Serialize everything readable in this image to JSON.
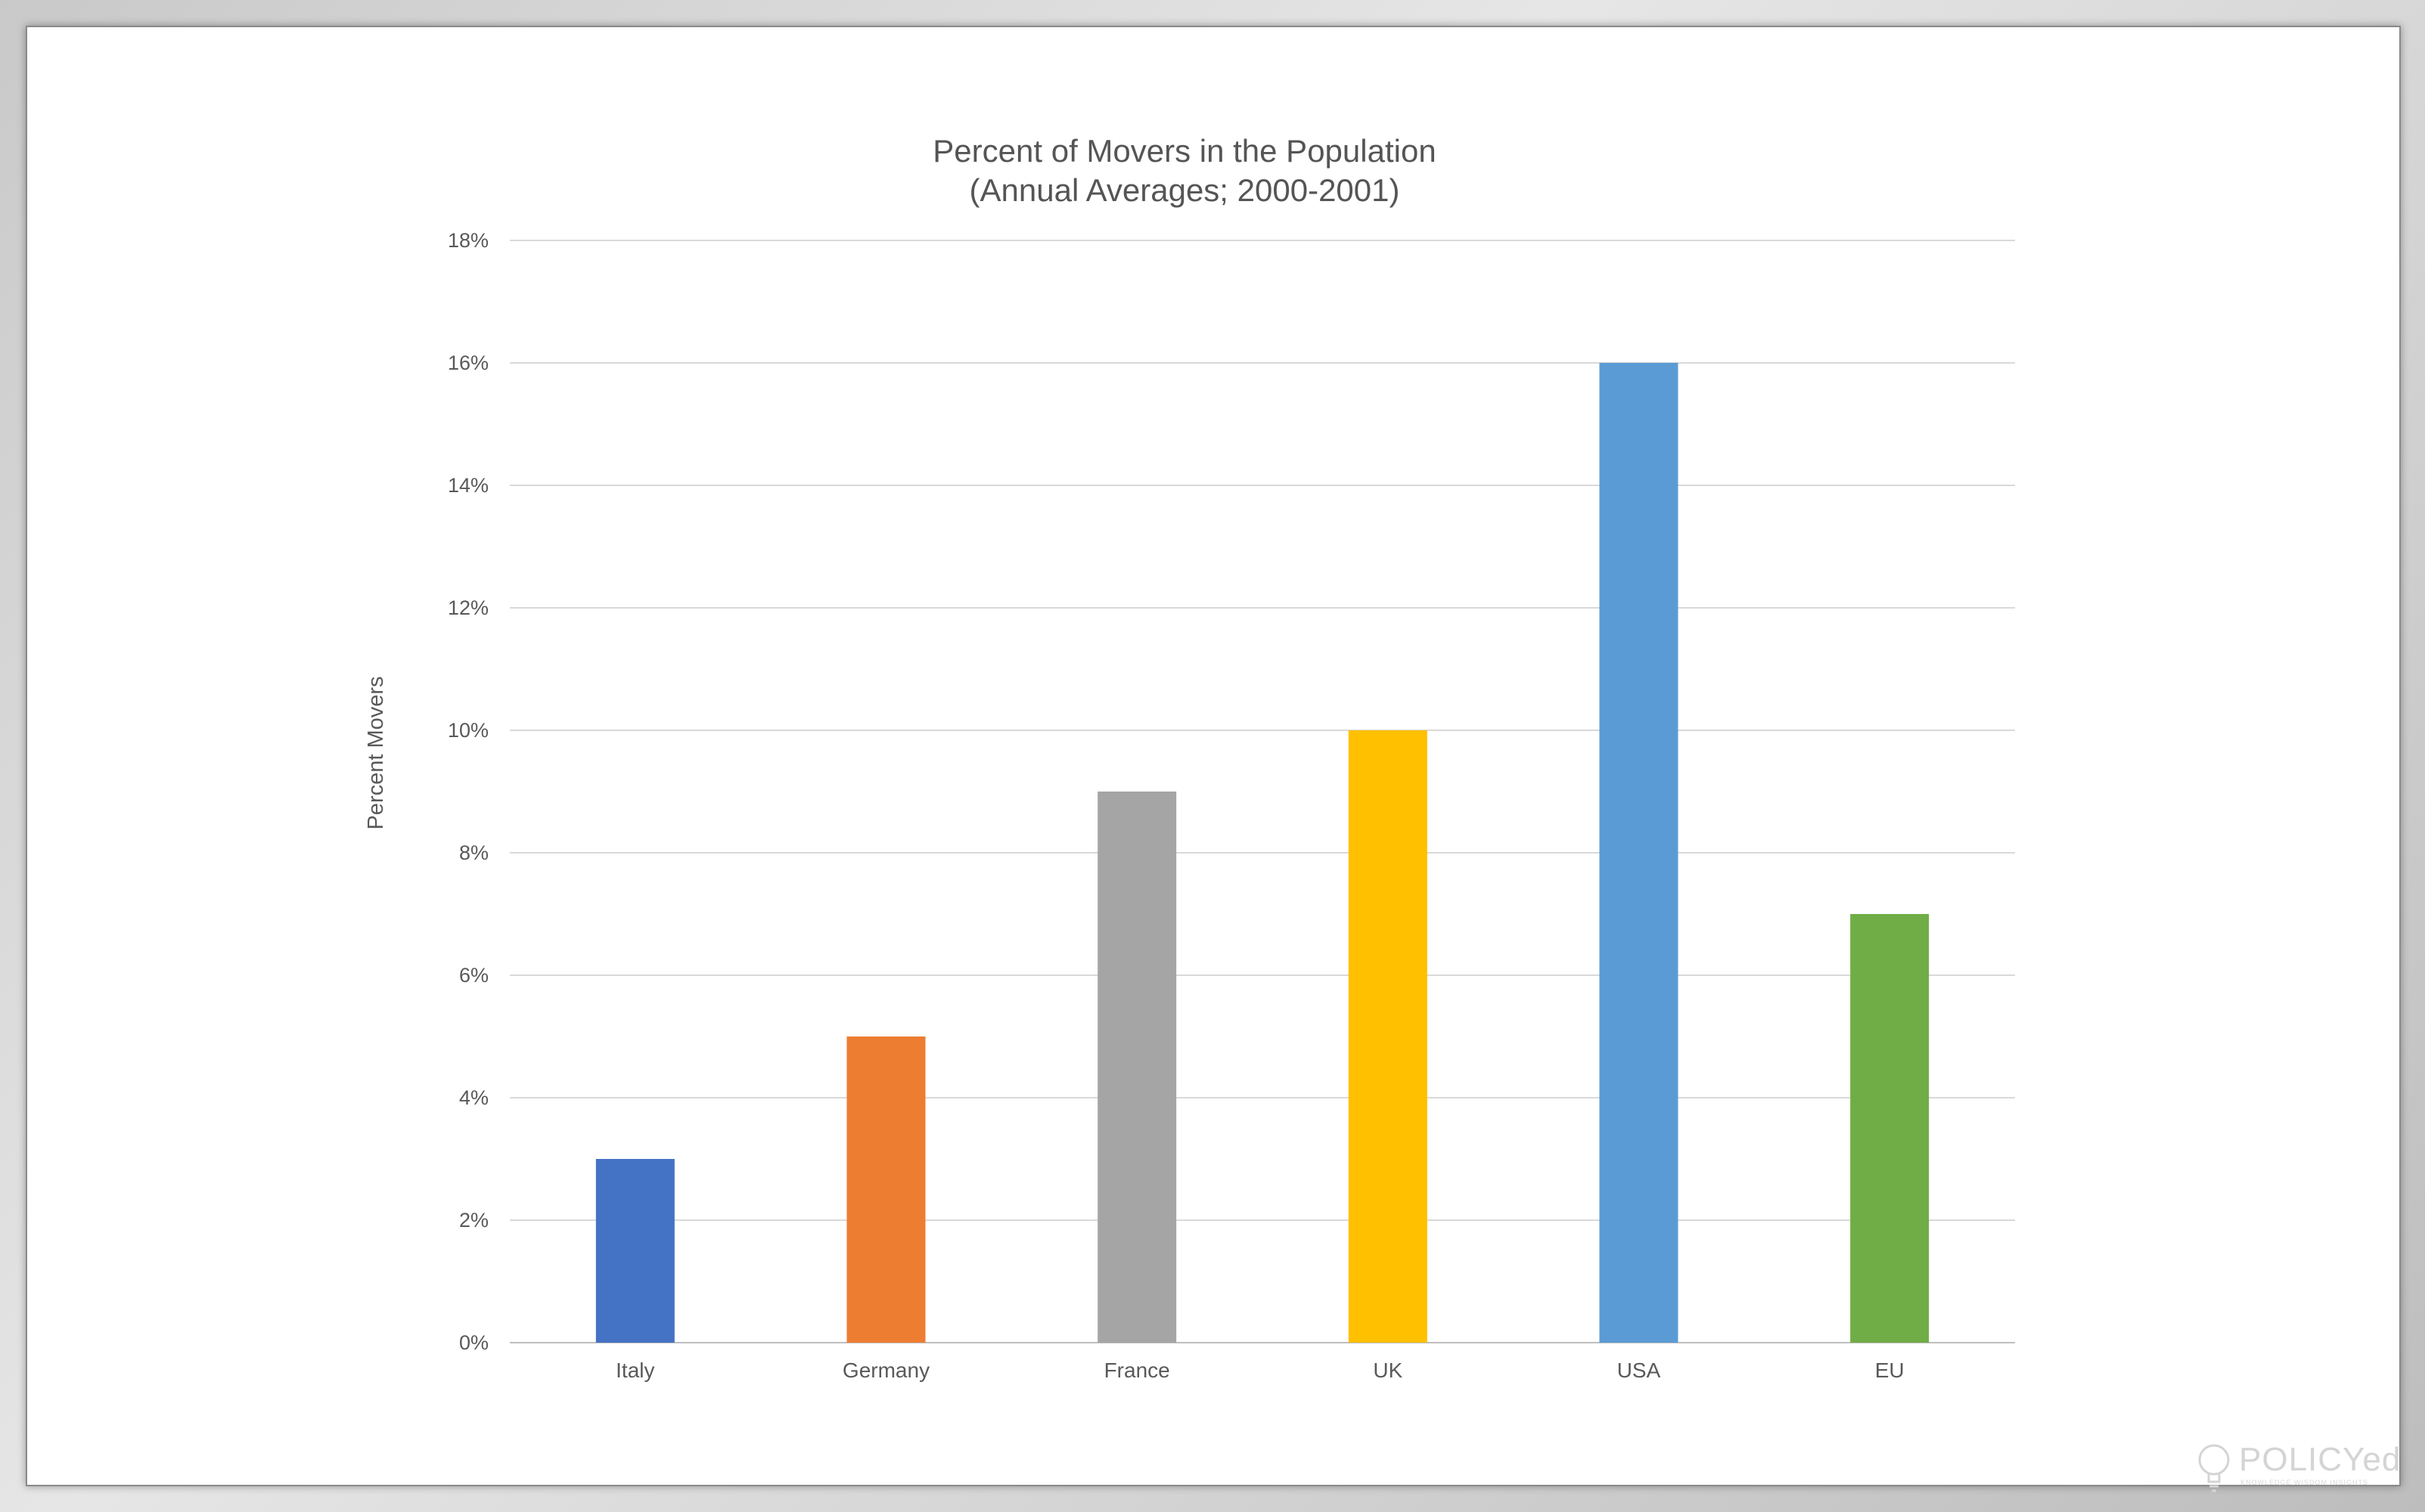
{
  "chart_data": {
    "type": "bar",
    "title": "Percent of Movers in the Population",
    "subtitle": "(Annual Averages; 2000-2001)",
    "ylabel": "Percent Movers",
    "xlabel": "",
    "categories": [
      "Italy",
      "Germany",
      "France",
      "UK",
      "USA",
      "EU"
    ],
    "values": [
      3,
      5,
      9,
      10,
      16,
      7
    ],
    "colors": [
      "#4472C4",
      "#ED7D31",
      "#A5A5A5",
      "#FFC000",
      "#5B9BD5",
      "#70AD47"
    ],
    "ylim": [
      0,
      18
    ],
    "yticks": [
      "0%",
      "2%",
      "4%",
      "6%",
      "8%",
      "10%",
      "12%",
      "14%",
      "16%",
      "18%"
    ],
    "grid": true,
    "legend": "none"
  },
  "logo": {
    "text": "POLICYed",
    "tagline": "KNOWLEDGE WISDOM INSIGHTS",
    "icon": "lightbulb-icon"
  }
}
